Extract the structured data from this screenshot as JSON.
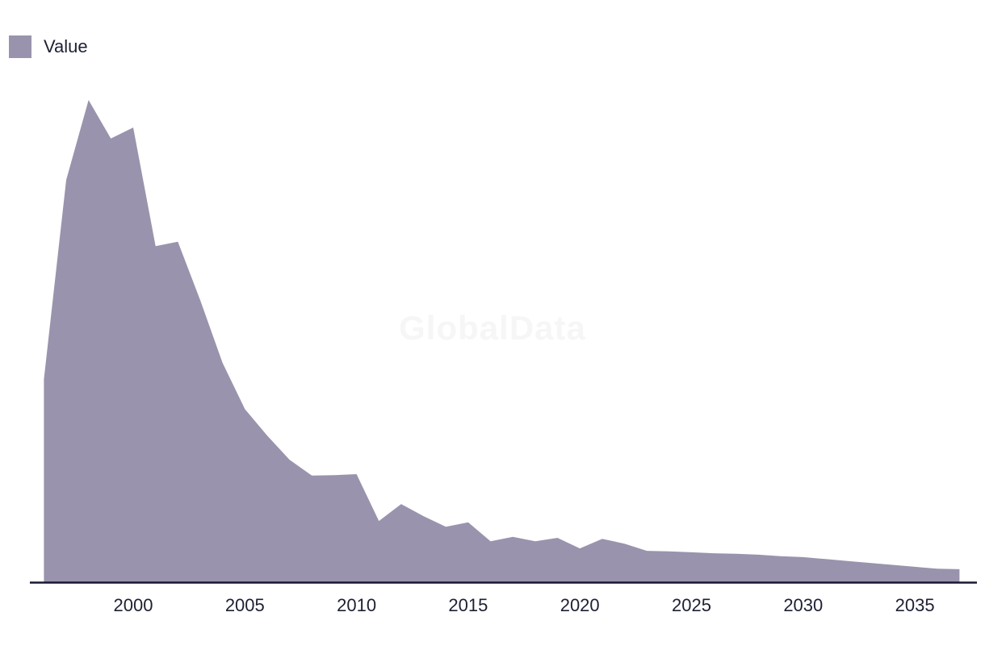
{
  "legend": {
    "label": "Value",
    "swatch_color": "#9a93ad"
  },
  "watermark_text": "GlobalData",
  "colors": {
    "area_fill": "#9a93ad",
    "axis_line": "#181831",
    "tick_text": "#1e2033",
    "watermark": "#f6f6f6"
  },
  "chart_data": {
    "type": "area",
    "title": "",
    "xlabel": "",
    "ylabel": "",
    "legend_position": "top-left",
    "grid": false,
    "y_axis_shown": false,
    "values_unit": "percent_of_peak (no y-axis labels shown; values estimated relative to 1998 peak = 100)",
    "xlim": [
      1996,
      2037
    ],
    "ylim": [
      0,
      100
    ],
    "x_tick_labels": [
      "2000",
      "2005",
      "2010",
      "2015",
      "2020",
      "2025",
      "2030",
      "2035"
    ],
    "x": [
      1996,
      1997,
      1998,
      1999,
      2000,
      2001,
      2002,
      2003,
      2004,
      2005,
      2006,
      2007,
      2008,
      2009,
      2010,
      2011,
      2012,
      2013,
      2014,
      2015,
      2016,
      2017,
      2018,
      2019,
      2020,
      2021,
      2022,
      2023,
      2024,
      2025,
      2026,
      2027,
      2028,
      2029,
      2030,
      2031,
      2032,
      2033,
      2034,
      2035,
      2036,
      2037
    ],
    "series": [
      {
        "name": "Value",
        "values": [
          42.1,
          83.4,
          100.0,
          92.0,
          94.3,
          69.7,
          70.6,
          58.5,
          45.5,
          35.9,
          30.4,
          25.4,
          22.1,
          22.2,
          22.4,
          12.7,
          16.2,
          13.7,
          11.5,
          12.4,
          8.5,
          9.4,
          8.5,
          9.2,
          7.0,
          9.0,
          8.0,
          6.5,
          6.4,
          6.2,
          6.0,
          5.9,
          5.7,
          5.4,
          5.2,
          4.8,
          4.4,
          4.0,
          3.6,
          3.2,
          2.8,
          2.7
        ]
      }
    ]
  }
}
